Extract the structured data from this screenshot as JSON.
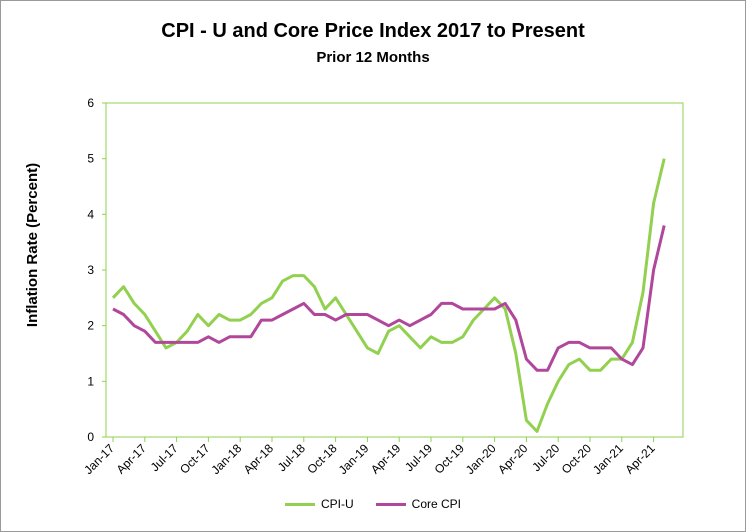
{
  "chart_data": {
    "type": "line",
    "title": "CPI - U and Core Price Index 2017 to Present",
    "subtitle": "Prior 12 Months",
    "ylabel": "Inflation Rate (Percent)",
    "xlabel": "",
    "ylim": [
      0,
      6
    ],
    "yticks": [
      "0",
      "1",
      "2",
      "3",
      "4",
      "5",
      "6"
    ],
    "grid": false,
    "legend_position": "bottom",
    "x_labels": [
      "Jan-17",
      "Apr-17",
      "Jul-17",
      "Oct-17",
      "Jan-18",
      "Apr-18",
      "Jul-18",
      "Oct-18",
      "Jan-19",
      "Apr-19",
      "Jul-19",
      "Oct-19",
      "Jan-20",
      "Apr-20",
      "Jul-20",
      "Oct-20",
      "Jan-21",
      "Apr-21"
    ],
    "x": [
      "Jan-17",
      "Feb-17",
      "Mar-17",
      "Apr-17",
      "May-17",
      "Jun-17",
      "Jul-17",
      "Aug-17",
      "Sep-17",
      "Oct-17",
      "Nov-17",
      "Dec-17",
      "Jan-18",
      "Feb-18",
      "Mar-18",
      "Apr-18",
      "May-18",
      "Jun-18",
      "Jul-18",
      "Aug-18",
      "Sep-18",
      "Oct-18",
      "Nov-18",
      "Dec-18",
      "Jan-19",
      "Feb-19",
      "Mar-19",
      "Apr-19",
      "May-19",
      "Jun-19",
      "Jul-19",
      "Aug-19",
      "Sep-19",
      "Oct-19",
      "Nov-19",
      "Dec-19",
      "Jan-20",
      "Feb-20",
      "Mar-20",
      "Apr-20",
      "May-20",
      "Jun-20",
      "Jul-20",
      "Aug-20",
      "Sep-20",
      "Oct-20",
      "Nov-20",
      "Dec-20",
      "Jan-21",
      "Feb-21",
      "Mar-21",
      "Apr-21",
      "May-21"
    ],
    "series": [
      {
        "name": "CPI-U",
        "color": "#92d050",
        "values": [
          2.5,
          2.7,
          2.4,
          2.2,
          1.9,
          1.6,
          1.7,
          1.9,
          2.2,
          2.0,
          2.2,
          2.1,
          2.1,
          2.2,
          2.4,
          2.5,
          2.8,
          2.9,
          2.9,
          2.7,
          2.3,
          2.5,
          2.2,
          1.9,
          1.6,
          1.5,
          1.9,
          2.0,
          1.8,
          1.6,
          1.8,
          1.7,
          1.7,
          1.8,
          2.1,
          2.3,
          2.5,
          2.3,
          1.5,
          0.3,
          0.1,
          0.6,
          1.0,
          1.3,
          1.4,
          1.2,
          1.2,
          1.4,
          1.4,
          1.7,
          2.6,
          4.2,
          5.0
        ]
      },
      {
        "name": "Core CPI",
        "color": "#b0479b",
        "values": [
          2.3,
          2.2,
          2.0,
          1.9,
          1.7,
          1.7,
          1.7,
          1.7,
          1.7,
          1.8,
          1.7,
          1.8,
          1.8,
          1.8,
          2.1,
          2.1,
          2.2,
          2.3,
          2.4,
          2.2,
          2.2,
          2.1,
          2.2,
          2.2,
          2.2,
          2.1,
          2.0,
          2.1,
          2.0,
          2.1,
          2.2,
          2.4,
          2.4,
          2.3,
          2.3,
          2.3,
          2.3,
          2.4,
          2.1,
          1.4,
          1.2,
          1.2,
          1.6,
          1.7,
          1.7,
          1.6,
          1.6,
          1.6,
          1.4,
          1.3,
          1.6,
          3.0,
          3.8
        ]
      }
    ]
  }
}
